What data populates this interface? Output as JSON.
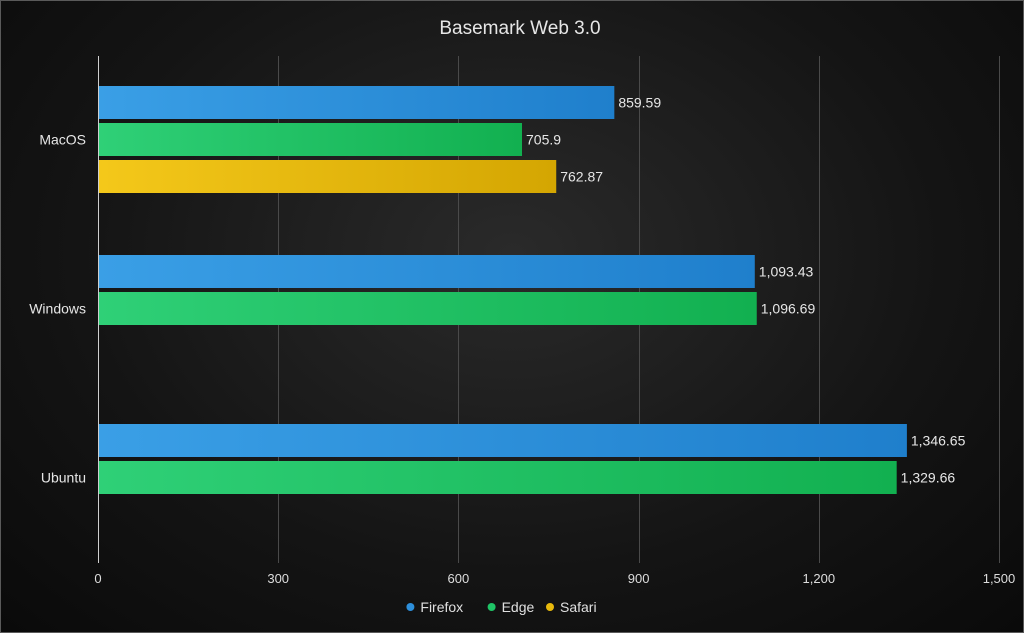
{
  "chart_data": {
    "type": "bar",
    "orientation": "horizontal",
    "title": "Basemark Web 3.0",
    "categories": [
      "MacOS",
      "Windows",
      "Ubuntu"
    ],
    "series": [
      {
        "name": "Firefox",
        "color": "#2d8fdb",
        "values": [
          859.59,
          1093.43,
          1346.65
        ],
        "labels": [
          "859.59",
          "1,093.43",
          "1,346.65"
        ]
      },
      {
        "name": "Edge",
        "color": "#1fc466",
        "values": [
          705.9,
          1096.69,
          1329.66
        ],
        "labels": [
          "705.9",
          "1,096.69",
          "1,329.66"
        ]
      },
      {
        "name": "Safari",
        "color": "#e8b90c",
        "values": [
          762.87,
          null,
          null
        ],
        "labels": [
          "762.87",
          "",
          ""
        ]
      }
    ],
    "xlim": [
      0,
      1500
    ],
    "xticks": [
      0,
      300,
      600,
      900,
      1200,
      1500
    ],
    "xtick_labels": [
      "0",
      "300",
      "600",
      "900",
      "1,200",
      "1,500"
    ],
    "grid": true,
    "legend_position": "bottom"
  }
}
